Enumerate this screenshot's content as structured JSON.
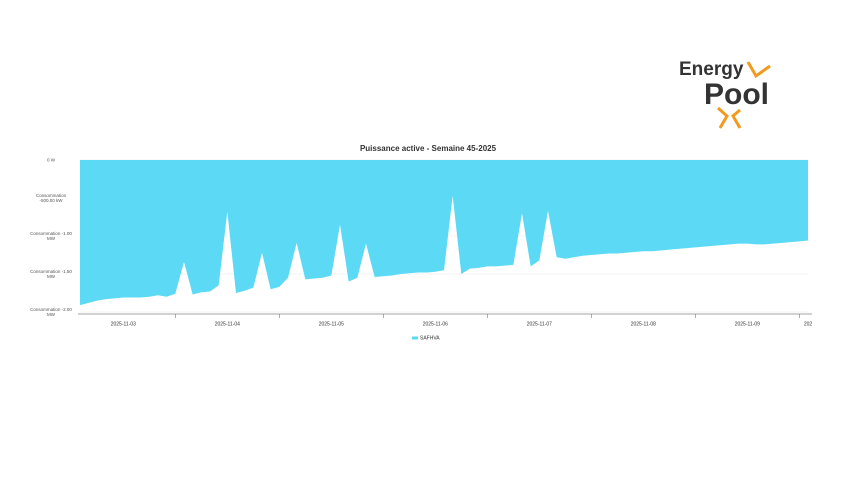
{
  "logo": {
    "line1": "Energy",
    "line2": "Pool"
  },
  "chart_data": {
    "type": "area",
    "title": "Puissance active - Semaine 45-2025",
    "categories": [
      null,
      null,
      null,
      null,
      null,
      "2025-11-03",
      null,
      null,
      null,
      null,
      null,
      null,
      null,
      null,
      null,
      null,
      null,
      "2025-11-04",
      null,
      null,
      null,
      null,
      null,
      null,
      null,
      null,
      null,
      null,
      null,
      "2025-11-05",
      null,
      null,
      null,
      null,
      null,
      null,
      null,
      null,
      null,
      null,
      null,
      "2025-11-06",
      null,
      null,
      null,
      null,
      null,
      null,
      null,
      null,
      null,
      null,
      null,
      "2025-11-07",
      null,
      null,
      null,
      null,
      null,
      null,
      null,
      null,
      null,
      null,
      null,
      "2025-11-08",
      null,
      null,
      null,
      null,
      null,
      null,
      null,
      null,
      null,
      null,
      null,
      "2025-11-09",
      null,
      null,
      null,
      null,
      null,
      null,
      "202"
    ],
    "series": [
      {
        "name": "SAFHVA",
        "color": "#5bd9f5",
        "values": [
          -1.91,
          -1.88,
          -1.85,
          -1.83,
          -1.82,
          -1.81,
          -1.81,
          -1.81,
          -1.8,
          -1.78,
          -1.8,
          -1.76,
          -1.34,
          -1.77,
          -1.74,
          -1.73,
          -1.65,
          -0.68,
          -1.75,
          -1.72,
          -1.68,
          -1.22,
          -1.7,
          -1.67,
          -1.55,
          -1.09,
          -1.57,
          -1.56,
          -1.55,
          -1.52,
          -0.85,
          -1.6,
          -1.55,
          -1.1,
          -1.54,
          -1.53,
          -1.52,
          -1.5,
          -1.49,
          -1.48,
          -1.48,
          -1.47,
          -1.45,
          -0.47,
          -1.5,
          -1.43,
          -1.42,
          -1.4,
          -1.4,
          -1.39,
          -1.38,
          -0.7,
          -1.4,
          -1.32,
          -0.67,
          -1.28,
          -1.3,
          -1.28,
          -1.26,
          -1.25,
          -1.24,
          -1.23,
          -1.23,
          -1.22,
          -1.21,
          -1.2,
          -1.2,
          -1.19,
          -1.18,
          -1.17,
          -1.16,
          -1.15,
          -1.14,
          -1.13,
          -1.12,
          -1.11,
          -1.1,
          -1.1,
          -1.11,
          -1.11,
          -1.1,
          -1.09,
          -1.08,
          -1.07,
          -1.06
        ]
      }
    ],
    "ylim": [
      -2,
      0
    ],
    "yticks": [
      {
        "value": 0,
        "label": "0 W"
      },
      {
        "value": -0.5,
        "label": "Consommation -500.00 kW"
      },
      {
        "value": -1,
        "label": "Consommation -1.00 MW"
      },
      {
        "value": -1.5,
        "label": "Consommation -1.50 MW"
      },
      {
        "value": -2,
        "label": "Consommation -2.00 MW"
      }
    ],
    "grid": true
  }
}
